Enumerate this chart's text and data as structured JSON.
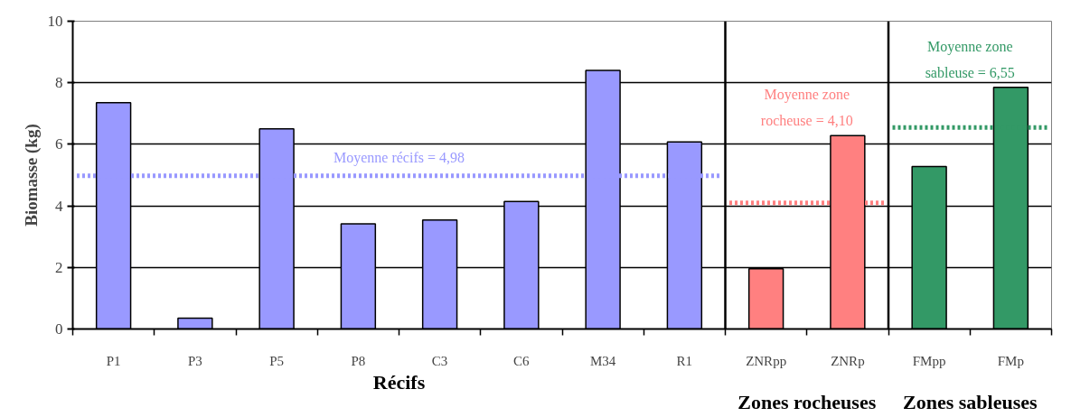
{
  "chart_data": {
    "type": "bar",
    "ylabel": "Biomasse (kg)",
    "categories": [
      "P1",
      "P3",
      "P5",
      "P8",
      "C3",
      "C6",
      "M34",
      "R1",
      "ZNRpp",
      "ZNRp",
      "FMpp",
      "FMp"
    ],
    "series": [
      {
        "color": "#9999ff",
        "values": [
          7.35,
          0.35,
          6.5,
          3.42,
          3.54,
          4.14,
          8.4,
          6.08,
          null,
          null,
          null,
          null
        ]
      },
      {
        "color": "#ff8080",
        "values": [
          null,
          null,
          null,
          null,
          null,
          null,
          null,
          null,
          1.96,
          6.28,
          null,
          null
        ]
      },
      {
        "color": "#339966",
        "values": [
          null,
          null,
          null,
          null,
          null,
          null,
          null,
          null,
          null,
          null,
          5.28,
          7.85
        ]
      }
    ],
    "ref_lines": [
      {
        "axis": "y",
        "value": 4.98,
        "label": "Moyenne récifs = 4,98",
        "color": "#9999ff",
        "line_style": "dotted"
      },
      {
        "axis": "y",
        "value": 4.1,
        "label": "Moyenne zone rocheuse = 4,10",
        "color": "#ff8080",
        "line_style": "dotted"
      },
      {
        "axis": "y",
        "value": 6.55,
        "label": "Moyenne zone sableuse = 6,55",
        "color": "#339966",
        "line_style": "dotted"
      }
    ],
    "annotations": [
      "Récifs",
      "Zones rocheuses",
      "Zones sableuses"
    ],
    "ylim": [
      0,
      10
    ],
    "yticks": [
      0,
      2,
      4,
      6,
      8,
      10
    ],
    "grid": "y"
  }
}
